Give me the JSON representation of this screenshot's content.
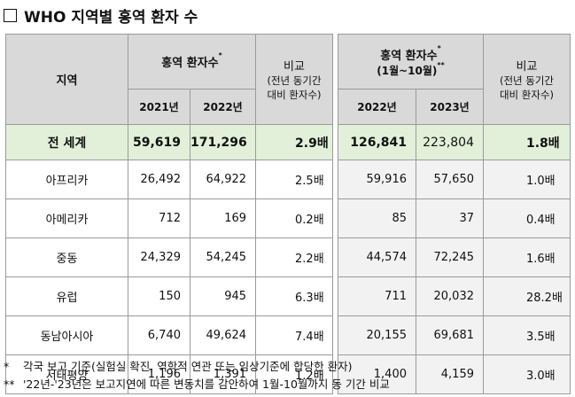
{
  "title": "WHO 지역별 홍역 환자 수",
  "headers": {
    "region": "지역",
    "group1": "홍역 환자수",
    "group1_mark": "*",
    "compare": "비교",
    "compare_sub1": "(전년 동기간",
    "compare_sub2": "대비 환자수)",
    "group2": "홍역 환자수",
    "group2_mark": "*",
    "group2_period": "(1월~10월)",
    "group2_period_mark": "**",
    "years": [
      "2021년",
      "2022년",
      "2022년",
      "2023년"
    ]
  },
  "rows": [
    {
      "region": "전 세계",
      "y2021": "59,619",
      "y2022": "171,296",
      "ratio1": "2.9배",
      "p2022": "126,841",
      "p2023": "223,804",
      "ratio2": "1.8배"
    },
    {
      "region": "아프리카",
      "y2021": "26,492",
      "y2022": "64,922",
      "ratio1": "2.5배",
      "p2022": "59,916",
      "p2023": "57,650",
      "ratio2": "1.0배"
    },
    {
      "region": "아메리카",
      "y2021": "712",
      "y2022": "169",
      "ratio1": "0.2배",
      "p2022": "85",
      "p2023": "37",
      "ratio2": "0.4배"
    },
    {
      "region": "중동",
      "y2021": "24,329",
      "y2022": "54,245",
      "ratio1": "2.2배",
      "p2022": "44,574",
      "p2023": "72,245",
      "ratio2": "1.6배"
    },
    {
      "region": "유럽",
      "y2021": "150",
      "y2022": "945",
      "ratio1": "6.3배",
      "p2022": "711",
      "p2023": "20,032",
      "ratio2": "28.2배"
    },
    {
      "region": "동남아시아",
      "y2021": "6,740",
      "y2022": "49,624",
      "ratio1": "7.4배",
      "p2022": "20,155",
      "p2023": "69,681",
      "ratio2": "3.5배"
    },
    {
      "region": "서태평양",
      "y2021": "1,196",
      "y2022": "1,391",
      "ratio1": "1.2배",
      "p2022": "1,400",
      "p2023": "4,159",
      "ratio2": "3.0배"
    }
  ],
  "notes": [
    {
      "mark": "*",
      "text": "각국 보고 기준(실험실 확진, 역학적 연관 또는 임상기준에 합당한 환자)"
    },
    {
      "mark": "**",
      "text": "'22년-'23년은 보고지연에 따른 변동치를 감안하여 1월-10월까지 동 기간 비교"
    }
  ]
}
